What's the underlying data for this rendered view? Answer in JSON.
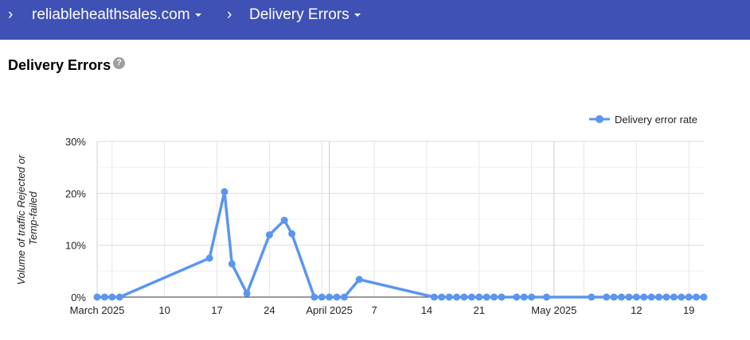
{
  "header": {
    "domain": "reliablehealthsales.com",
    "page": "Delivery Errors",
    "icons": [
      "chevron-right-icon",
      "caret-down-icon"
    ]
  },
  "title": "Delivery Errors",
  "help_icon": "?",
  "chart_data": {
    "type": "line",
    "ylabel_lines": [
      "Volume of traffic Rejected or",
      "Temp-failed"
    ],
    "ylim": [
      0,
      30
    ],
    "y_ticks": [
      "0%",
      "10%",
      "20%",
      "30%"
    ],
    "x_ticks": [
      {
        "date": "2025-03-01",
        "label": "March 2025"
      },
      {
        "date": "2025-03-10",
        "label": "10"
      },
      {
        "date": "2025-03-17",
        "label": "17"
      },
      {
        "date": "2025-03-24",
        "label": "24"
      },
      {
        "date": "2025-04-01",
        "label": "April 2025"
      },
      {
        "date": "2025-04-07",
        "label": "7"
      },
      {
        "date": "2025-04-14",
        "label": "14"
      },
      {
        "date": "2025-04-21",
        "label": "21"
      },
      {
        "date": "2025-05-01",
        "label": "May 2025"
      },
      {
        "date": "2025-05-12",
        "label": "12"
      },
      {
        "date": "2025-05-19",
        "label": "19"
      }
    ],
    "xlim": [
      "2025-03-01",
      "2025-05-21"
    ],
    "grid": true,
    "legend": "top-right",
    "color": "#5b95f0",
    "series": [
      {
        "name": "Delivery error rate",
        "points": [
          [
            "2025-03-01",
            0
          ],
          [
            "2025-03-02",
            0
          ],
          [
            "2025-03-03",
            0
          ],
          [
            "2025-03-04",
            0
          ],
          [
            "2025-03-16",
            7.5
          ],
          [
            "2025-03-18",
            20.3
          ],
          [
            "2025-03-19",
            6.4
          ],
          [
            "2025-03-21",
            0.7
          ],
          [
            "2025-03-24",
            12.0
          ],
          [
            "2025-03-26",
            14.8
          ],
          [
            "2025-03-27",
            12.2
          ],
          [
            "2025-03-30",
            0
          ],
          [
            "2025-03-31",
            0
          ],
          [
            "2025-04-01",
            0
          ],
          [
            "2025-04-02",
            0
          ],
          [
            "2025-04-03",
            0
          ],
          [
            "2025-04-05",
            3.4
          ],
          [
            "2025-04-15",
            0
          ],
          [
            "2025-04-16",
            0
          ],
          [
            "2025-04-17",
            0
          ],
          [
            "2025-04-18",
            0
          ],
          [
            "2025-04-19",
            0
          ],
          [
            "2025-04-20",
            0
          ],
          [
            "2025-04-21",
            0
          ],
          [
            "2025-04-22",
            0
          ],
          [
            "2025-04-23",
            0
          ],
          [
            "2025-04-24",
            0
          ],
          [
            "2025-04-26",
            0
          ],
          [
            "2025-04-27",
            0
          ],
          [
            "2025-04-28",
            0
          ],
          [
            "2025-04-30",
            0
          ],
          [
            "2025-05-06",
            0
          ],
          [
            "2025-05-08",
            0
          ],
          [
            "2025-05-09",
            0
          ],
          [
            "2025-05-10",
            0
          ],
          [
            "2025-05-11",
            0
          ],
          [
            "2025-05-12",
            0
          ],
          [
            "2025-05-13",
            0
          ],
          [
            "2025-05-14",
            0
          ],
          [
            "2025-05-15",
            0
          ],
          [
            "2025-05-16",
            0
          ],
          [
            "2025-05-17",
            0
          ],
          [
            "2025-05-18",
            0
          ],
          [
            "2025-05-19",
            0
          ],
          [
            "2025-05-20",
            0
          ],
          [
            "2025-05-21",
            0
          ]
        ]
      }
    ]
  }
}
